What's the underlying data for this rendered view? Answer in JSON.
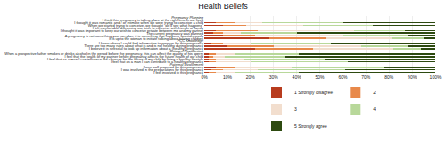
{
  "chart_data": {
    "type": "bar",
    "orientation": "horizontal",
    "stacked": true,
    "title": "Health Beliefs",
    "categories": [
      "Pregnancy Planning",
      "I think this pregnancy is taking place at the right time in our lives",
      "I thought it was romantic and / or intimate when we were trying to conceive a child",
      "When we started trying to conceive, we thought \"we'll see what happens\"",
      "I felt comfortable discussing our wish to conceive with friends or family",
      "I thought it was important to keep our wish to conceive private between me and my partner",
      "The current pregnancy was planned",
      "A pregnancy is not something you can plan, it is something that happens spontaneously",
      "It is up to the woman to initiate talking about having children",
      "PCC Knowledge",
      "I knew where I could find information to prepare for this pregnancy",
      "There are too many rules about what is and is not healthy during pregnancy",
      "I believe it is stressful to look up information about a (healthy) pregnancy",
      "Paternal Contribution",
      "When a prospective father smokes or drinks alcohol in the period before the pregnancy, this can affect the quality of his sperm",
      "I feel that the health of my partner before pregnancy affects the future health of our child",
      "I feel that as a man I can influence the chances for the future of my child by living a healthy lifestyle",
      "I feel that as a man I can contribute to a healthy pregnancy",
      "Paternal Involvement",
      "I was well prepared for this pregnancy",
      "I was involved in the preparations for this pregnancy",
      "I feel involved in this pregnancy"
    ],
    "series": [
      {
        "name": "1 Strongly disagree",
        "color": "#b83c1e",
        "values": [
          0,
          2,
          5,
          8,
          5,
          5,
          4,
          8,
          28,
          0,
          3,
          10,
          22,
          0,
          2,
          2,
          2,
          2,
          0,
          5,
          3,
          2
        ]
      },
      {
        "name": "2",
        "color": "#e8894a",
        "values": [
          0,
          3,
          8,
          10,
          8,
          18,
          4,
          14,
          25,
          0,
          5,
          20,
          25,
          0,
          3,
          2,
          3,
          3,
          0,
          8,
          5,
          3
        ]
      },
      {
        "name": "3",
        "color": "#f2dece",
        "values": [
          0,
          5,
          12,
          25,
          22,
          42,
          8,
          38,
          28,
          0,
          12,
          38,
          35,
          0,
          8,
          5,
          12,
          15,
          0,
          25,
          15,
          8
        ]
      },
      {
        "name": "4",
        "color": "#b8d89a",
        "values": [
          0,
          33,
          35,
          30,
          38,
          22,
          24,
          28,
          14,
          0,
          35,
          20,
          12,
          0,
          28,
          26,
          35,
          42,
          0,
          40,
          38,
          28
        ]
      },
      {
        "name": "5 Strongly agree",
        "color": "#2d4a10",
        "values": [
          0,
          57,
          40,
          27,
          27,
          13,
          60,
          12,
          5,
          0,
          45,
          12,
          6,
          0,
          59,
          65,
          48,
          38,
          0,
          22,
          39,
          59
        ]
      }
    ],
    "xlim": [
      0,
      100
    ],
    "xticks": [
      {
        "value": 0,
        "label": "0%"
      },
      {
        "value": 10,
        "label": "10%"
      },
      {
        "value": 20,
        "label": "20%"
      },
      {
        "value": 30,
        "label": "30%"
      },
      {
        "value": 40,
        "label": "40%"
      },
      {
        "value": 50,
        "label": "50%"
      },
      {
        "value": 60,
        "label": "60%"
      },
      {
        "value": 70,
        "label": "70%"
      },
      {
        "value": 80,
        "label": "80%"
      },
      {
        "value": 90,
        "label": "90%"
      },
      {
        "value": 100,
        "label": "100%"
      }
    ],
    "grid": true,
    "legend": "bottom"
  }
}
